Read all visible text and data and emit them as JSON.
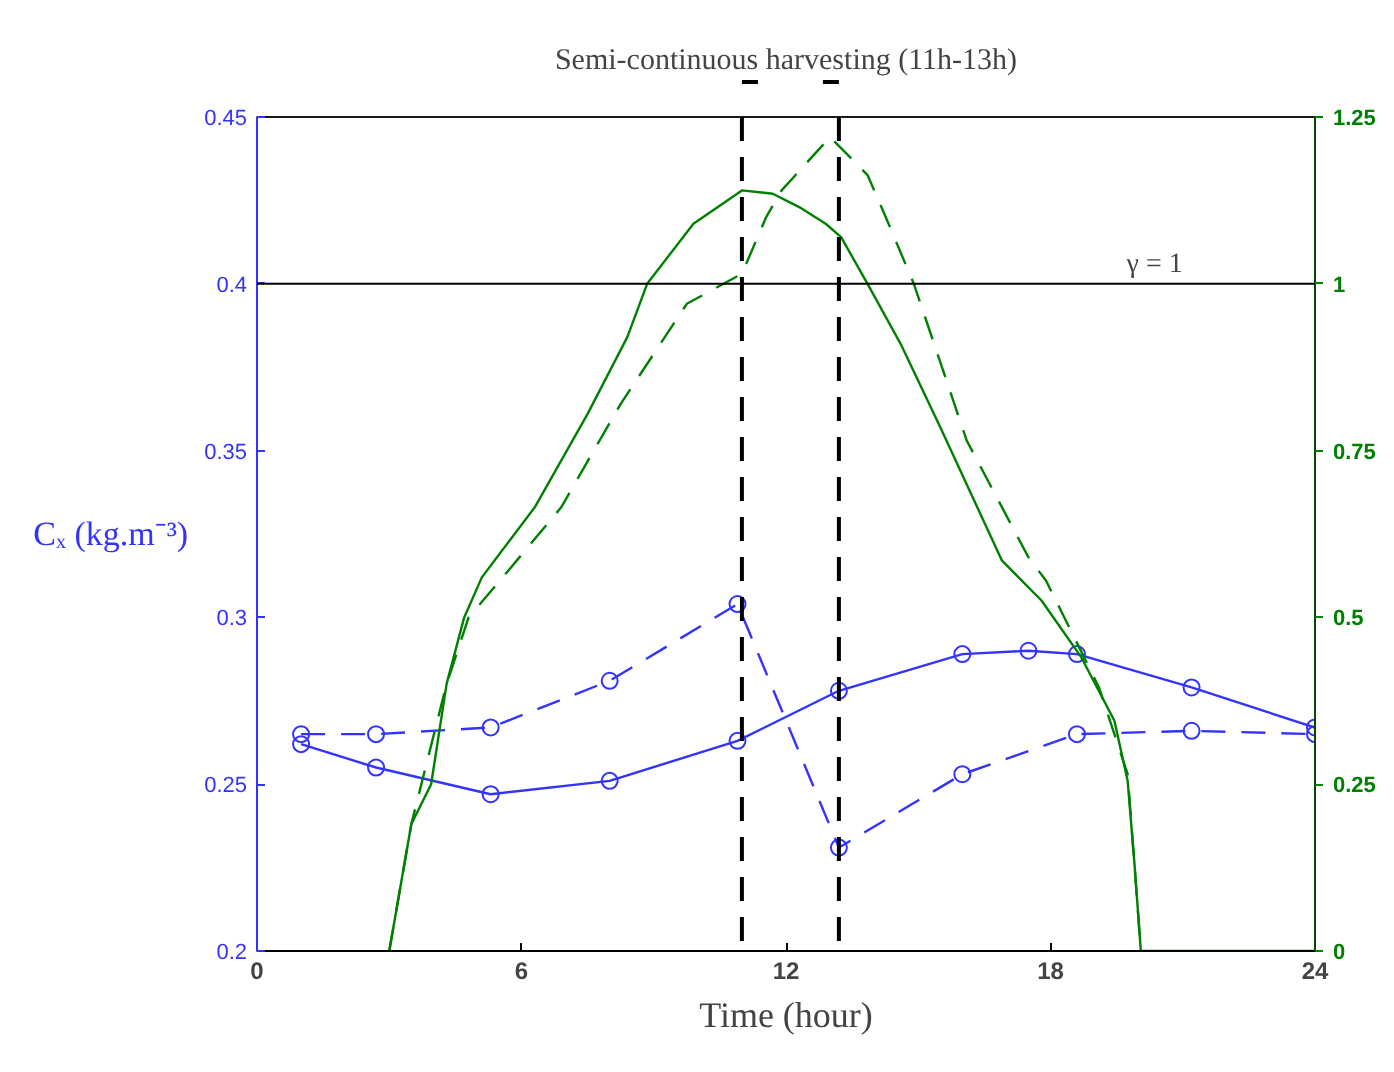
{
  "chart_data": {
    "type": "line",
    "title": "Semi-continuous harvesting (11h-13h)",
    "xlabel": "Time (hour)",
    "ylabel": "Cₓ (kg.m⁻³)",
    "xlim": [
      0,
      24
    ],
    "xticks": [
      0,
      6,
      12,
      18,
      24
    ],
    "ylim": [
      0.2,
      0.45
    ],
    "yticks": [
      {
        "value": 0.2,
        "label": "0.2"
      },
      0.25,
      {
        "value": 0.3,
        "label": "0.3"
      },
      0.35,
      {
        "value": 0.4,
        "label": "0.4"
      },
      0.45
    ],
    "y2lim": [
      0,
      1.25
    ],
    "y2ticks": [
      0,
      0.25,
      0.5,
      0.75,
      1,
      1.25
    ],
    "grid": false,
    "series": [
      {
        "color": "#3333ff",
        "marker": "circle",
        "line_style": "solid",
        "x": [
          1,
          2.7,
          5.3,
          8,
          10.9,
          13.2,
          16,
          17.5,
          18.6,
          21.2,
          24
        ],
        "values": [
          0.262,
          0.255,
          0.247,
          0.251,
          0.263,
          0.278,
          0.289,
          0.29,
          0.289,
          0.279,
          0.267
        ]
      },
      {
        "color": "#3333ff",
        "marker": "circle",
        "line_style": "dashed",
        "x": [
          1,
          2.7,
          5.3,
          8,
          10.9,
          13.2,
          16,
          18.6,
          21.2,
          24
        ],
        "values": [
          0.265,
          0.265,
          0.267,
          0.281,
          0.304,
          0.231,
          0.253,
          0.265,
          0.266,
          0.265
        ]
      },
      {
        "color": "#008000",
        "axis": "y2",
        "marker": "none",
        "line_style": "solid",
        "x": [
          3,
          3.5,
          3.95,
          4.3,
          4.7,
          5.1,
          6.3,
          7.5,
          8.4,
          8.85,
          9.9,
          11,
          11.7,
          12.3,
          12.9,
          13.25,
          13.85,
          14.6,
          15.5,
          16.9,
          17.8,
          18.7,
          19.45,
          19.75,
          19.9,
          20.05,
          24
        ],
        "values": [
          0,
          0.19,
          0.25,
          0.4,
          0.5,
          0.56,
          0.665,
          0.805,
          0.92,
          1.0,
          1.09,
          1.14,
          1.135,
          1.115,
          1.09,
          1.07,
          1.0,
          0.91,
          0.785,
          0.585,
          0.525,
          0.44,
          0.345,
          0.255,
          0.135,
          0,
          0
        ]
      },
      {
        "color": "#008000",
        "axis": "y2",
        "marker": "none",
        "line_style": "dashed",
        "x": [
          3,
          3.5,
          4.3,
          4.8,
          5.7,
          6.9,
          8.25,
          9.75,
          11,
          11.55,
          11.9,
          13,
          13.85,
          14.3,
          14.9,
          16.1,
          17.5,
          17.9,
          19.1,
          19.75,
          20.05
        ],
        "values": [
          0,
          0.19,
          0.4,
          0.5,
          0.57,
          0.665,
          0.82,
          0.97,
          1.015,
          1.1,
          1.14,
          1.22,
          1.163,
          1.094,
          1.0,
          0.765,
          0.59,
          0.555,
          0.395,
          0.265,
          0
        ]
      }
    ],
    "ref_lines": [
      {
        "axis": "y2",
        "value": 1,
        "label": "γ = 1",
        "color": "#000000",
        "line_style": "solid"
      },
      {
        "axis": "x",
        "value": 11,
        "label": null,
        "color": "#000000",
        "line_style": "dashed"
      },
      {
        "axis": "x",
        "value": 13.2,
        "label": null,
        "color": "#000000",
        "line_style": "dashed"
      }
    ]
  }
}
